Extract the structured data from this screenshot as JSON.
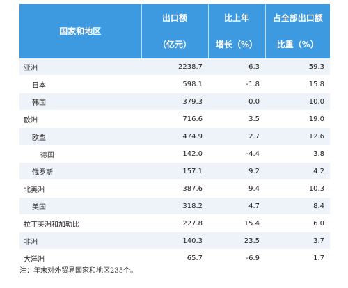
{
  "header": {
    "region": "国家和地区",
    "export_line1": "出口额",
    "export_line2": "（亿元）",
    "growth_line1": "比上年",
    "growth_line2": "增长（%）",
    "share_line1": "占全部出口额",
    "share_line2": "比重（%）"
  },
  "rows": [
    {
      "name": "亚洲",
      "export": "2238.7",
      "growth": "6.3",
      "share": "59.3"
    },
    {
      "name": "日本",
      "export": "598.1",
      "growth": "-1.8",
      "share": "15.8"
    },
    {
      "name": "韩国",
      "export": "379.3",
      "growth": "0.0",
      "share": "10.0"
    },
    {
      "name": "欧洲",
      "export": "716.6",
      "growth": "3.5",
      "share": "19.0"
    },
    {
      "name": "欧盟",
      "export": "474.9",
      "growth": "2.7",
      "share": "12.6"
    },
    {
      "name": "德国",
      "export": "142.0",
      "growth": "-4.4",
      "share": "3.8"
    },
    {
      "name": "俄罗斯",
      "export": "157.1",
      "growth": "9.2",
      "share": "4.2"
    },
    {
      "name": "北美洲",
      "export": "387.6",
      "growth": "9.4",
      "share": "10.3"
    },
    {
      "name": "美国",
      "export": "318.2",
      "growth": "4.7",
      "share": "8.4"
    },
    {
      "name": "拉丁美洲和加勒比",
      "export": "227.8",
      "growth": "15.4",
      "share": "6.0"
    },
    {
      "name": "非洲",
      "export": "140.3",
      "growth": "23.5",
      "share": "3.7"
    },
    {
      "name": "大洋洲",
      "export": "65.7",
      "growth": "-6.9",
      "share": "1.7"
    }
  ],
  "note": "注：年末对外贸易国家和地区235个。",
  "colors": {
    "header_bg": "#3d9ae0",
    "stripe": "#eef2f9"
  }
}
